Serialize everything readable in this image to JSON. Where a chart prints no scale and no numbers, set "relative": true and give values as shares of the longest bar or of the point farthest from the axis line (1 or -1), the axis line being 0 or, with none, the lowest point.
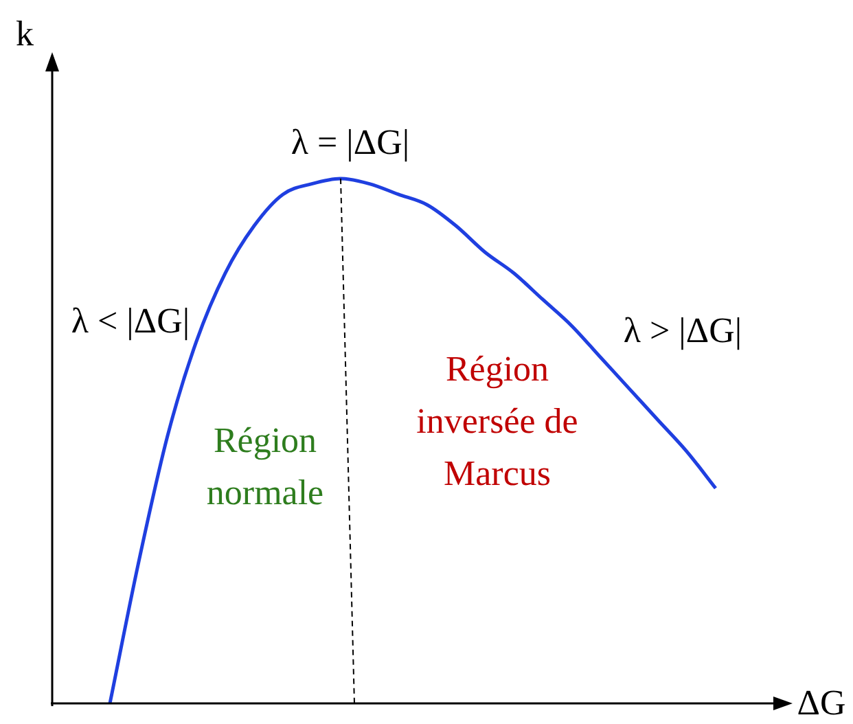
{
  "chart_data": {
    "type": "line",
    "relative": true,
    "xlabel": "ΔG",
    "ylabel": "k",
    "marker": "none",
    "legend": false,
    "categories": [
      null,
      null,
      null,
      null,
      null,
      null,
      null,
      null,
      null,
      null,
      null,
      null,
      null,
      null,
      null,
      null,
      null,
      null,
      null,
      null,
      null,
      null,
      null,
      null,
      null,
      null
    ],
    "series": [
      {
        "color": "#1f3fe0",
        "values": [
          null,
          null,
          0,
          0.27,
          0.51,
          0.69,
          0.82,
          0.91,
          0.97,
          0.99,
          1,
          0.99,
          0.97,
          0.95,
          0.91,
          0.86,
          0.82,
          0.77,
          0.72,
          0.66,
          0.6,
          0.54,
          0.48,
          0.41,
          null,
          null
        ]
      }
    ],
    "annotations": [
      "λ = |ΔG|",
      "λ < |ΔG|",
      "λ > |ΔG|",
      "Région normale",
      "Région inversée de Marcus"
    ]
  }
}
